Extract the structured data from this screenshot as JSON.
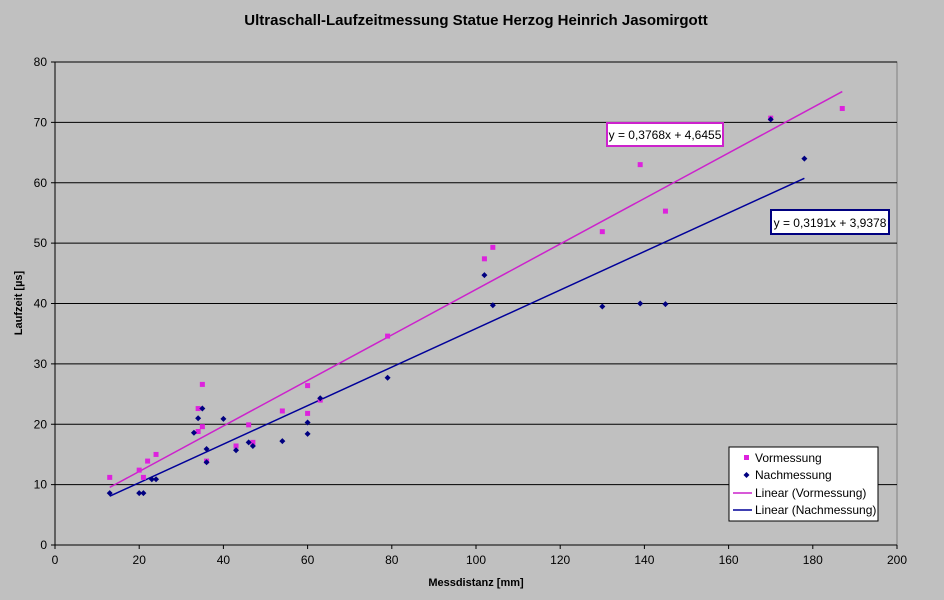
{
  "chart_data": {
    "type": "scatter",
    "title": "Ultraschall-Laufzeitmessung Statue Herzog Heinrich Jasomirgott",
    "xlabel": "Messdistanz [mm]",
    "ylabel": "Laufzeit [µs]",
    "xlim": [
      0,
      200
    ],
    "ylim": [
      0,
      80
    ],
    "xticks": [
      "0",
      "20",
      "40",
      "60",
      "80",
      "100",
      "120",
      "140",
      "160",
      "180",
      "200"
    ],
    "yticks": [
      "0",
      "10",
      "20",
      "30",
      "40",
      "50",
      "60",
      "70",
      "80"
    ],
    "grid": "horizontal major",
    "legend_position": "bottom-right",
    "series": [
      {
        "name": "Vormessung",
        "color": "#dd22dd",
        "marker": "square",
        "points": [
          [
            13,
            11.2
          ],
          [
            20,
            12.4
          ],
          [
            21,
            11.2
          ],
          [
            22,
            13.9
          ],
          [
            24,
            15.0
          ],
          [
            34,
            22.6
          ],
          [
            34,
            18.8
          ],
          [
            35,
            26.6
          ],
          [
            35,
            19.6
          ],
          [
            36,
            13.9
          ],
          [
            43,
            16.4
          ],
          [
            46,
            19.9
          ],
          [
            47,
            17.0
          ],
          [
            54,
            22.2
          ],
          [
            60,
            26.4
          ],
          [
            60,
            21.8
          ],
          [
            63,
            24.0
          ],
          [
            79,
            34.6
          ],
          [
            102,
            47.4
          ],
          [
            104,
            49.3
          ],
          [
            130,
            51.9
          ],
          [
            139,
            63.0
          ],
          [
            145,
            55.3
          ],
          [
            170,
            70.7
          ],
          [
            187,
            72.3
          ]
        ]
      },
      {
        "name": "Nachmessung",
        "color": "#000080",
        "marker": "diamond",
        "points": [
          [
            13,
            8.6
          ],
          [
            20,
            8.6
          ],
          [
            21,
            8.6
          ],
          [
            23,
            10.9
          ],
          [
            24,
            10.9
          ],
          [
            33,
            18.6
          ],
          [
            34,
            21.0
          ],
          [
            35,
            22.6
          ],
          [
            36,
            15.9
          ],
          [
            36,
            13.7
          ],
          [
            40,
            20.9
          ],
          [
            43,
            15.7
          ],
          [
            46,
            17.0
          ],
          [
            47,
            16.4
          ],
          [
            54,
            17.2
          ],
          [
            60,
            20.3
          ],
          [
            60,
            18.4
          ],
          [
            63,
            24.3
          ],
          [
            79,
            27.7
          ],
          [
            102,
            44.7
          ],
          [
            104,
            39.7
          ],
          [
            130,
            39.5
          ],
          [
            139,
            40.0
          ],
          [
            145,
            39.9
          ],
          [
            170,
            70.5
          ],
          [
            178,
            64.0
          ]
        ]
      }
    ],
    "trendlines": [
      {
        "name": "Linear (Vormessung)",
        "color": "#cc22cc",
        "slope": 0.3768,
        "intercept": 4.6455,
        "x_range": [
          13,
          187
        ],
        "equation": "y = 0,3768x + 4,6455"
      },
      {
        "name": "Linear (Nachmessung)",
        "color": "#000099",
        "slope": 0.3191,
        "intercept": 3.9378,
        "x_range": [
          13,
          178
        ],
        "equation": "y = 0,3191x + 3,9378"
      }
    ]
  }
}
